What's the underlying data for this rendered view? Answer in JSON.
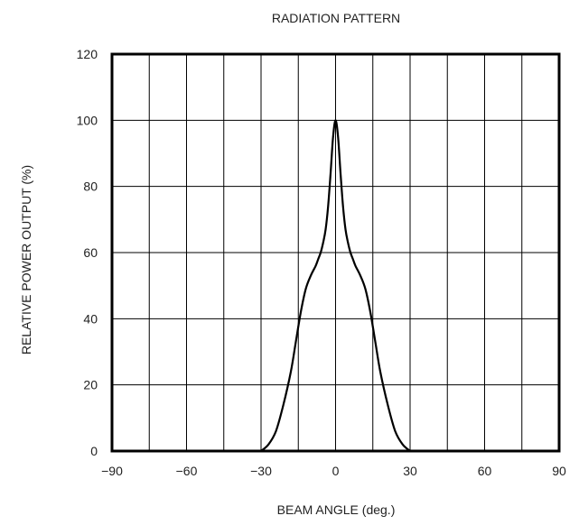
{
  "chart_data": {
    "type": "line",
    "title": "RADIATION PATTERN",
    "xlabel": "BEAM ANGLE (deg.)",
    "ylabel": "RELATIVE POWER OUTPUT (%)",
    "xlim": [
      -90,
      90
    ],
    "ylim": [
      0,
      120
    ],
    "x_ticks": [
      -90,
      -60,
      -30,
      0,
      30,
      60,
      90
    ],
    "x_tick_labels": [
      "−90",
      "−60",
      "−30",
      "0",
      "30",
      "60",
      "90"
    ],
    "x_grid": [
      -90,
      -75,
      -60,
      -45,
      -30,
      -15,
      0,
      15,
      30,
      45,
      60,
      75,
      90
    ],
    "y_ticks": [
      0,
      20,
      40,
      60,
      80,
      100,
      120
    ],
    "y_tick_labels": [
      "0",
      "20",
      "40",
      "60",
      "80",
      "100",
      "120"
    ],
    "grid": true,
    "series": [
      {
        "color": "#000000",
        "x": [
          -30,
          -27,
          -24,
          -21,
          -18,
          -16,
          -14,
          -12,
          -10,
          -8,
          -7,
          -6,
          -5,
          -4,
          -3,
          -2,
          -1,
          0,
          1,
          2,
          3,
          4,
          5,
          6,
          7,
          8,
          10,
          12,
          14,
          16,
          18,
          21,
          24,
          27,
          30
        ],
        "y": [
          0,
          2,
          6,
          14,
          24,
          33,
          42,
          49,
          53,
          56,
          58,
          60,
          63,
          67,
          74,
          84,
          95,
          100,
          95,
          84,
          74,
          67,
          63,
          60,
          58,
          56,
          53,
          49,
          42,
          33,
          24,
          14,
          6,
          2,
          0
        ]
      }
    ]
  }
}
